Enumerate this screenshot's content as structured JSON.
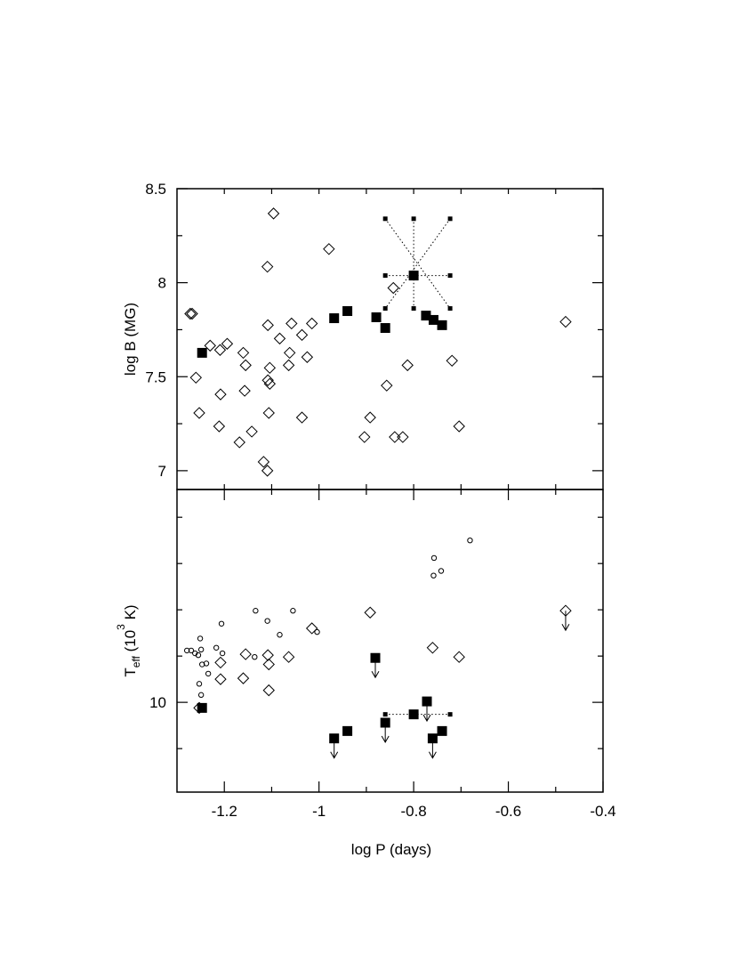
{
  "chart_data": [
    {
      "type": "scatter",
      "ylabel": [
        {
          "text": "log B (MG)"
        }
      ],
      "xlim": [
        -1.3,
        -0.4
      ],
      "xticks_minor": [
        -1.2,
        -1.1,
        -1,
        -0.9,
        -0.8,
        -0.7,
        -0.6,
        -0.5
      ],
      "ylim": [
        6.9,
        8.5
      ],
      "yticks": [
        7,
        7.5,
        8,
        8.5
      ],
      "yticks_minor": [
        7.25,
        7.75,
        8.25
      ],
      "series": [
        {
          "marker": "diamond",
          "color": "#000",
          "x": [
            -1.272,
            -1.268,
            -1.26,
            -1.253,
            -1.23,
            -1.211,
            -1.209,
            -1.208,
            -1.194,
            -1.168,
            -1.16,
            -1.157,
            -1.155,
            -1.142,
            -1.117,
            -1.109,
            -1.109,
            -1.108,
            -1.108,
            -1.104,
            -1.104,
            -1.106,
            -1.096,
            -1.083,
            -1.064,
            -1.062,
            -1.058,
            -1.036,
            -1.036,
            -1.025,
            -1.015,
            -0.979,
            -0.904,
            -0.892,
            -0.857,
            -0.843,
            -0.84,
            -0.823,
            -0.813,
            -0.719,
            -0.704,
            -0.479
          ],
          "values": [
            7.835,
            7.835,
            7.495,
            7.307,
            7.665,
            7.236,
            7.642,
            7.406,
            7.675,
            7.151,
            7.627,
            7.425,
            7.561,
            7.208,
            7.047,
            7.0,
            8.085,
            7.774,
            7.481,
            7.462,
            7.547,
            7.307,
            8.368,
            7.703,
            7.561,
            7.627,
            7.783,
            7.722,
            7.283,
            7.604,
            7.783,
            8.179,
            7.179,
            7.283,
            7.453,
            7.972,
            7.179,
            7.179,
            7.561,
            7.585,
            7.236,
            7.792
          ]
        },
        {
          "marker": "square",
          "color": "#000",
          "x": [
            -1.247,
            -0.968,
            -0.94,
            -0.879,
            -0.86,
            -0.8,
            -0.774,
            -0.758,
            -0.74
          ],
          "values": [
            7.627,
            7.811,
            7.849,
            7.816,
            7.759,
            8.038,
            7.825,
            7.802,
            7.774
          ]
        },
        {
          "marker": "small-square",
          "color": "#000",
          "dotted_pairs": true,
          "x": [
            -0.86,
            -0.8,
            -0.723,
            -0.86,
            -0.723,
            -0.86,
            -0.8,
            -0.723
          ],
          "values": [
            8.34,
            8.34,
            8.34,
            8.038,
            8.038,
            7.863,
            7.863,
            7.863
          ]
        }
      ]
    },
    {
      "type": "scatter",
      "xlabel": "log P (days)",
      "ylabel": [
        {
          "text": "T"
        },
        {
          "text": "eff",
          "style": "sub"
        },
        {
          "text": " (10"
        },
        {
          "text": "3",
          "style": "sup"
        },
        {
          "text": " K)"
        }
      ],
      "xlim": [
        -1.3,
        -0.4
      ],
      "xticks": [
        -1.2,
        -1,
        -0.8,
        -0.6,
        -0.4
      ],
      "xticks_minor": [
        -1.1,
        -0.9,
        -0.7,
        -0.5
      ],
      "ylim": [
        0.3,
        33
      ],
      "yticks": [
        10
      ],
      "yticks_minor": [
        5,
        15,
        20,
        25,
        30
      ],
      "series": [
        {
          "marker": "circle",
          "color": "#000",
          "x": [
            -1.279,
            -1.27,
            -1.262,
            -1.255,
            -1.249,
            -1.251,
            -1.247,
            -1.238,
            -1.253,
            -1.249,
            -1.234,
            -1.217,
            -1.206,
            -1.204,
            -1.134,
            -1.109,
            -1.136,
            -1.083,
            -1.055,
            -1.004,
            -0.757,
            -0.758,
            -0.742,
            -0.681
          ],
          "values": [
            15.6,
            15.6,
            15.3,
            15.1,
            15.7,
            16.9,
            14.1,
            14.2,
            12.0,
            10.8,
            13.1,
            15.9,
            18.5,
            15.3,
            19.9,
            18.8,
            14.9,
            17.3,
            19.9,
            17.6,
            25.6,
            23.7,
            24.2,
            27.5
          ]
        },
        {
          "marker": "diamond",
          "color": "#000",
          "x": [
            -1.253,
            -1.208,
            -1.208,
            -1.155,
            -1.16,
            -1.108,
            -1.106,
            -1.106,
            -1.064,
            -1.015,
            -0.892,
            -0.76,
            -0.704,
            -0.479
          ],
          "values": [
            9.4,
            14.3,
            12.5,
            15.2,
            12.6,
            15.1,
            14.1,
            11.3,
            14.9,
            18.0,
            19.7,
            15.9,
            14.9,
            19.9
          ],
          "upper_limit": [
            false,
            false,
            false,
            false,
            false,
            false,
            false,
            false,
            false,
            false,
            false,
            false,
            false,
            true
          ]
        },
        {
          "marker": "square",
          "color": "#000",
          "x": [
            -1.247,
            -0.881,
            -0.968,
            -0.94,
            -0.86,
            -0.8,
            -0.772,
            -0.76,
            -0.74
          ],
          "values": [
            9.4,
            14.8,
            6.1,
            6.9,
            7.8,
            8.7,
            10.1,
            6.1,
            6.9
          ],
          "upper_limit": [
            false,
            true,
            true,
            false,
            true,
            false,
            true,
            true,
            false
          ]
        },
        {
          "marker": "small-square",
          "color": "#000",
          "dotted_pairs": true,
          "x": [
            -0.86,
            -0.723
          ],
          "values": [
            8.7,
            8.7
          ]
        }
      ]
    }
  ]
}
